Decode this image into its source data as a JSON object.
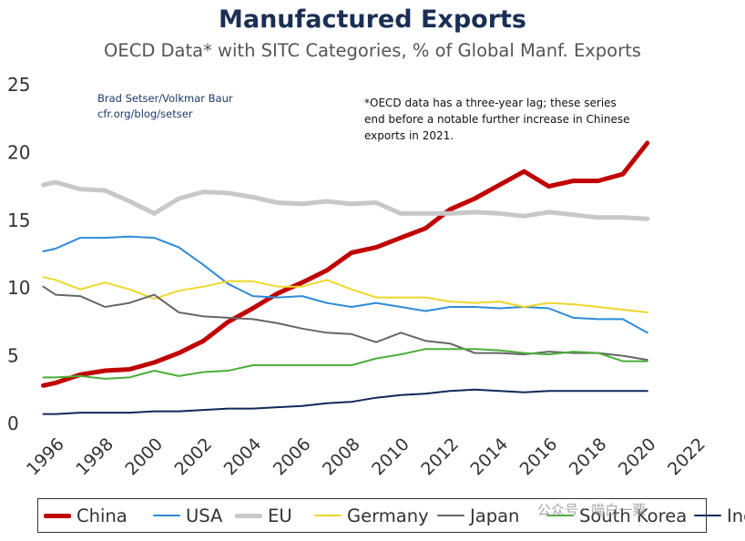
{
  "header": {
    "title": "Manufactured Exports",
    "subtitle": "OECD Data* with SITC Categories, % of Global Manf. Exports"
  },
  "annotations": {
    "credit_line1": "Brad Setser/Volkmar Baur",
    "credit_line2": "cfr.org/blog/setser",
    "note_line1": "*OECD data has a three-year lag; these series",
    "note_line2": "end before a notable further increase in Chinese",
    "note_line3": "exports in 2021."
  },
  "watermark": "公众号 · 喵白一粟",
  "chart_data": {
    "type": "line",
    "title": "Manufactured Exports",
    "subtitle": "OECD Data* with SITC Categories, % of Global Manf. Exports",
    "xlabel": "",
    "ylabel": "",
    "xlim": [
      1996,
      2022
    ],
    "ylim": [
      0,
      25
    ],
    "x_ticks": [
      1996,
      1998,
      2000,
      2002,
      2004,
      2006,
      2008,
      2010,
      2012,
      2014,
      2016,
      2018,
      2020,
      2022
    ],
    "y_ticks": [
      0,
      5,
      10,
      15,
      20,
      25
    ],
    "grid": false,
    "legend_position": "bottom",
    "x": [
      1995.5,
      1996,
      1997,
      1998,
      1999,
      2000,
      2001,
      2002,
      2003,
      2004,
      2005,
      2006,
      2007,
      2008,
      2009,
      2010,
      2011,
      2012,
      2013,
      2014,
      2015,
      2016,
      2017,
      2018,
      2019,
      2020
    ],
    "series": [
      {
        "name": "China",
        "color": "#c00000",
        "width": 5,
        "values": [
          2.8,
          3.0,
          3.6,
          3.9,
          4.0,
          4.5,
          5.2,
          6.1,
          7.5,
          8.5,
          9.6,
          10.4,
          11.3,
          12.6,
          13.0,
          13.7,
          14.4,
          15.8,
          16.6,
          17.6,
          18.6,
          17.5,
          17.9,
          17.9,
          18.4,
          20.7
        ]
      },
      {
        "name": "USA",
        "color": "#2e8bd6",
        "width": 2,
        "values": [
          12.7,
          12.9,
          13.7,
          13.7,
          13.8,
          13.7,
          13.0,
          11.7,
          10.3,
          9.4,
          9.3,
          9.4,
          8.9,
          8.6,
          8.9,
          8.6,
          8.3,
          8.6,
          8.6,
          8.5,
          8.6,
          8.5,
          7.8,
          7.7,
          7.7,
          6.7
        ]
      },
      {
        "name": "EU",
        "color": "#c8c8c8",
        "width": 5,
        "values": [
          17.6,
          17.8,
          17.3,
          17.2,
          16.4,
          15.5,
          16.6,
          17.1,
          17.0,
          16.7,
          16.3,
          16.2,
          16.4,
          16.2,
          16.3,
          15.5,
          15.5,
          15.5,
          15.6,
          15.5,
          15.3,
          15.6,
          15.4,
          15.2,
          15.2,
          15.1
        ]
      },
      {
        "name": "Germany",
        "color": "#ecd82a",
        "width": 2,
        "values": [
          10.8,
          10.6,
          9.9,
          10.4,
          9.9,
          9.2,
          9.8,
          10.1,
          10.5,
          10.5,
          10.1,
          10.1,
          10.6,
          9.9,
          9.3,
          9.3,
          9.3,
          9.0,
          8.9,
          9.0,
          8.6,
          8.9,
          8.8,
          8.6,
          8.4,
          8.2
        ]
      },
      {
        "name": "Japan",
        "color": "#666666",
        "width": 2,
        "values": [
          10.1,
          9.5,
          9.4,
          8.6,
          8.9,
          9.5,
          8.2,
          7.9,
          7.8,
          7.7,
          7.4,
          7.0,
          6.7,
          6.6,
          6.0,
          6.7,
          6.1,
          5.9,
          5.2,
          5.2,
          5.1,
          5.3,
          5.2,
          5.2,
          5.0,
          4.7
        ]
      },
      {
        "name": "South Korea",
        "color": "#4cae3a",
        "width": 2,
        "values": [
          3.4,
          3.4,
          3.5,
          3.3,
          3.4,
          3.9,
          3.5,
          3.8,
          3.9,
          4.3,
          4.3,
          4.3,
          4.3,
          4.3,
          4.8,
          5.1,
          5.5,
          5.5,
          5.5,
          5.4,
          5.2,
          5.1,
          5.3,
          5.2,
          4.6,
          4.6
        ]
      },
      {
        "name": "India",
        "color": "#10285a",
        "width": 2,
        "values": [
          0.7,
          0.7,
          0.8,
          0.8,
          0.8,
          0.9,
          0.9,
          1.0,
          1.1,
          1.1,
          1.2,
          1.3,
          1.5,
          1.6,
          1.9,
          2.1,
          2.2,
          2.4,
          2.5,
          2.4,
          2.3,
          2.4,
          2.4,
          2.4,
          2.4,
          2.4
        ]
      }
    ]
  }
}
